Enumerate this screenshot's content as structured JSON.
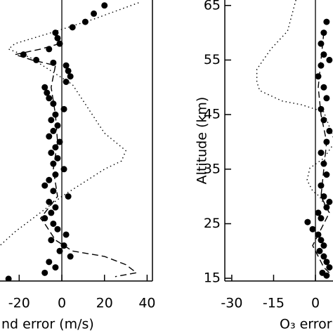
{
  "chart_data": [
    {
      "type": "scatter",
      "x_label": "nd error (m/s)",
      "xlim": [
        -29,
        42.5
      ],
      "ylim": [
        14.5,
        66
      ],
      "xticks": [
        -20,
        0,
        20,
        40
      ],
      "series": [
        {
          "style": "dotted",
          "color": "#000000",
          "x": [
            36,
            15,
            -5,
            -22,
            -25,
            -15,
            5,
            20,
            30,
            28,
            20,
            0,
            -22,
            -29
          ],
          "y": [
            65.5,
            62.5,
            60,
            58,
            57,
            55.5,
            50.5,
            41.6,
            38.4,
            36.5,
            35,
            30,
            23.5,
            21
          ]
        },
        {
          "style": "dashed",
          "color": "#000000",
          "x": [
            -1,
            -10,
            -22,
            -14,
            -3,
            -5,
            -3,
            -2,
            -4,
            -2,
            -10,
            -8,
            -3,
            5,
            20,
            30,
            35,
            25
          ],
          "y": [
            58,
            57,
            56,
            55,
            54,
            50,
            45,
            40,
            35,
            30,
            26,
            25,
            22,
            20,
            19,
            17.5,
            16,
            15.3
          ]
        },
        {
          "style": "markers",
          "color": "#000000",
          "x": [
            20,
            15,
            11,
            5,
            -3,
            -2,
            -1,
            -6,
            -18,
            -12,
            -4,
            2,
            3,
            4,
            2,
            -8,
            -7,
            -6,
            -4,
            1,
            -3,
            -5,
            -2,
            -4,
            -6,
            -1,
            -3,
            -5,
            -2,
            -4,
            1,
            -3,
            -6,
            -8,
            -4,
            3,
            -6,
            -3,
            -5,
            -8,
            -4,
            -2,
            2,
            -5,
            1,
            -1,
            4,
            -6,
            -3,
            -8,
            -25
          ],
          "y": [
            65,
            63.5,
            62,
            61,
            60,
            59,
            58,
            57,
            56,
            55,
            54.5,
            54,
            53,
            52,
            51,
            50,
            49,
            48,
            47,
            46,
            45,
            44,
            43,
            42,
            41,
            40,
            39,
            38,
            37,
            36,
            35,
            34,
            33,
            32,
            31,
            30,
            29,
            28,
            27,
            26,
            25,
            24,
            23,
            22,
            21,
            20,
            19,
            18,
            17,
            16,
            14.9
          ]
        }
      ]
    },
    {
      "type": "scatter",
      "x_label": "O₃ error",
      "y_label": "Altitude (km)",
      "xlim": [
        -32.5,
        6.3
      ],
      "ylim": [
        14.5,
        66
      ],
      "xticks": [
        -30,
        -15,
        0
      ],
      "yticks": [
        15,
        25,
        35,
        45,
        55,
        65
      ],
      "series": [
        {
          "style": "dotted",
          "color": "#000000",
          "x": [
            -7,
            -10,
            -16,
            -21,
            -21,
            -20,
            -12,
            -5,
            3,
            7,
            3,
            -2,
            -3,
            -1,
            1.5,
            5
          ],
          "y": [
            66,
            60.3,
            57,
            53.3,
            51,
            49.4,
            47.5,
            46.8,
            45.5,
            40,
            37,
            35.2,
            33,
            31,
            30,
            27
          ]
        },
        {
          "style": "dashed",
          "color": "#000000",
          "x": [
            3,
            2,
            1,
            2,
            4,
            3,
            2,
            5,
            3,
            1,
            -1,
            1,
            3,
            5
          ],
          "y": [
            60,
            55,
            50,
            45,
            40,
            35,
            30,
            27,
            25,
            23,
            21,
            19,
            17,
            16
          ]
        },
        {
          "style": "markers",
          "color": "#000000",
          "x": [
            4,
            3,
            2,
            3,
            5,
            2,
            1,
            3,
            4,
            2,
            3,
            5,
            4,
            2,
            3,
            4,
            2,
            3,
            5,
            4,
            1,
            2,
            -2.8,
            -1,
            1,
            2,
            3,
            1.5,
            3,
            4,
            5,
            2.5,
            4
          ],
          "y": [
            62,
            60,
            58,
            56,
            55,
            54,
            52,
            50,
            48,
            46,
            44,
            42,
            40,
            38,
            36,
            34,
            32,
            30,
            29,
            28,
            27,
            26,
            25.3,
            24,
            23,
            22,
            21,
            20,
            19,
            18,
            17,
            16,
            15.5
          ]
        }
      ]
    }
  ]
}
